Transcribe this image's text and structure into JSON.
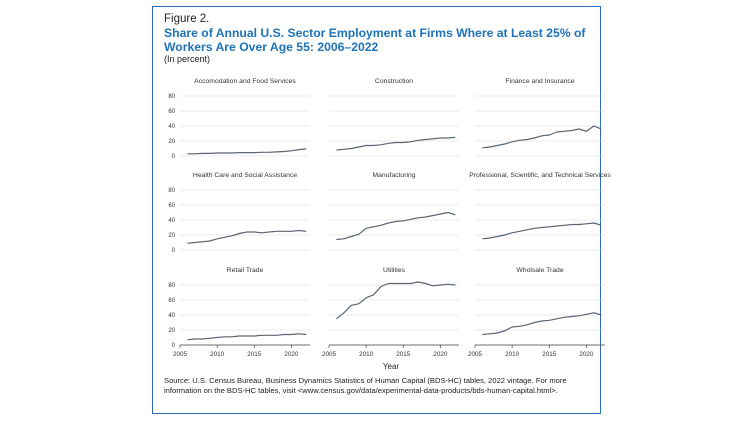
{
  "figure": {
    "label": "Figure 2.",
    "title": "Share of Annual U.S. Sector Employment at Firms Where at Least 25% of Workers Are Over Age 55: 2006–2022",
    "subtitle": "(In percent)",
    "source": "Source: U.S. Census Bureau, Business Dynamics Statistics of Human Capital (BDS-HC) tables, 2022 vintage. For more information on the BDS-HC tables, visit <www.census.gov/data/experimental-data-products/bds-human-capital.html>."
  },
  "colors": {
    "accent": "#1e73b8",
    "line": "#5a6573",
    "grid": "#d8d8d8",
    "frame": "#2b6cb0"
  },
  "chart_data": [
    {
      "type": "line",
      "title": "Accomodation and Food Services",
      "xlabel": "",
      "ylabel": "",
      "ylim": [
        0,
        80
      ],
      "x": [
        2006,
        2007,
        2008,
        2009,
        2010,
        2011,
        2012,
        2013,
        2014,
        2015,
        2016,
        2017,
        2018,
        2019,
        2020,
        2021,
        2022
      ],
      "values": [
        3,
        3,
        3.5,
        3.5,
        4,
        4,
        4,
        4.5,
        4.5,
        4.5,
        5,
        5,
        5.5,
        6,
        7,
        8.5,
        9.5
      ]
    },
    {
      "type": "line",
      "title": "Construction",
      "xlabel": "",
      "ylabel": "",
      "ylim": [
        0,
        80
      ],
      "x": [
        2006,
        2007,
        2008,
        2009,
        2010,
        2011,
        2012,
        2013,
        2014,
        2015,
        2016,
        2017,
        2018,
        2019,
        2020,
        2021,
        2022
      ],
      "values": [
        8,
        9,
        10,
        12,
        14,
        14,
        15,
        17,
        18,
        18,
        19,
        21,
        22,
        23,
        24,
        24,
        25
      ]
    },
    {
      "type": "line",
      "title": "Finance and Insurance",
      "xlabel": "",
      "ylabel": "",
      "ylim": [
        0,
        80
      ],
      "x": [
        2006,
        2007,
        2008,
        2009,
        2010,
        2011,
        2012,
        2013,
        2014,
        2015,
        2016,
        2017,
        2018,
        2019,
        2020,
        2021,
        2022
      ],
      "values": [
        11,
        12,
        14,
        16,
        19,
        21,
        22,
        24,
        27,
        28,
        32,
        33,
        34,
        36,
        33,
        40,
        36
      ]
    },
    {
      "type": "line",
      "title": "Health Care and Social Assistance",
      "xlabel": "",
      "ylabel": "",
      "ylim": [
        0,
        80
      ],
      "x": [
        2006,
        2007,
        2008,
        2009,
        2010,
        2011,
        2012,
        2013,
        2014,
        2015,
        2016,
        2017,
        2018,
        2019,
        2020,
        2021,
        2022
      ],
      "values": [
        9,
        10,
        11,
        12,
        15,
        17,
        19,
        22,
        24,
        24,
        23,
        24,
        25,
        25,
        25,
        26,
        25
      ]
    },
    {
      "type": "line",
      "title": "Manufacturing",
      "xlabel": "",
      "ylabel": "",
      "ylim": [
        0,
        80
      ],
      "x": [
        2006,
        2007,
        2008,
        2009,
        2010,
        2011,
        2012,
        2013,
        2014,
        2015,
        2016,
        2017,
        2018,
        2019,
        2020,
        2021,
        2022
      ],
      "values": [
        14,
        15,
        18,
        21,
        29,
        31,
        33,
        36,
        38,
        39,
        41,
        43,
        44,
        46,
        48,
        50,
        47
      ]
    },
    {
      "type": "line",
      "title": "Professional, Scientific, and Technical Services",
      "xlabel": "",
      "ylabel": "",
      "ylim": [
        0,
        80
      ],
      "x": [
        2006,
        2007,
        2008,
        2009,
        2010,
        2011,
        2012,
        2013,
        2014,
        2015,
        2016,
        2017,
        2018,
        2019,
        2020,
        2021,
        2022
      ],
      "values": [
        15,
        16,
        18,
        20,
        23,
        25,
        27,
        29,
        30,
        31,
        32,
        33,
        34,
        34,
        35,
        36,
        33
      ]
    },
    {
      "type": "line",
      "title": "Retail Trade",
      "xlabel": "",
      "ylabel": "",
      "ylim": [
        0,
        80
      ],
      "x": [
        2006,
        2007,
        2008,
        2009,
        2010,
        2011,
        2012,
        2013,
        2014,
        2015,
        2016,
        2017,
        2018,
        2019,
        2020,
        2021,
        2022
      ],
      "values": [
        7,
        8,
        8,
        9,
        10,
        11,
        11,
        12,
        12,
        12,
        13,
        13,
        13,
        14,
        14,
        15,
        14
      ]
    },
    {
      "type": "line",
      "title": "Utilities",
      "xlabel": "",
      "ylabel": "",
      "ylim": [
        0,
        80
      ],
      "x": [
        2006,
        2007,
        2008,
        2009,
        2010,
        2011,
        2012,
        2013,
        2014,
        2015,
        2016,
        2017,
        2018,
        2019,
        2020,
        2021,
        2022
      ],
      "values": [
        35,
        43,
        53,
        55,
        63,
        67,
        78,
        82,
        82,
        82,
        82,
        84,
        82,
        79,
        80,
        81,
        80
      ]
    },
    {
      "type": "line",
      "title": "Wholsale Trade",
      "xlabel": "",
      "ylabel": "",
      "ylim": [
        0,
        80
      ],
      "x": [
        2006,
        2007,
        2008,
        2009,
        2010,
        2011,
        2012,
        2013,
        2014,
        2015,
        2016,
        2017,
        2018,
        2019,
        2020,
        2021,
        2022
      ],
      "values": [
        14,
        15,
        16,
        19,
        24,
        25,
        27,
        30,
        32,
        33,
        35,
        37,
        38,
        39,
        41,
        43,
        40
      ]
    }
  ],
  "axes": {
    "y_ticks": [
      "0",
      "20",
      "40",
      "60",
      "80"
    ],
    "x_ticks": [
      "2005",
      "2010",
      "2015",
      "2020"
    ],
    "x_title": "Year"
  }
}
